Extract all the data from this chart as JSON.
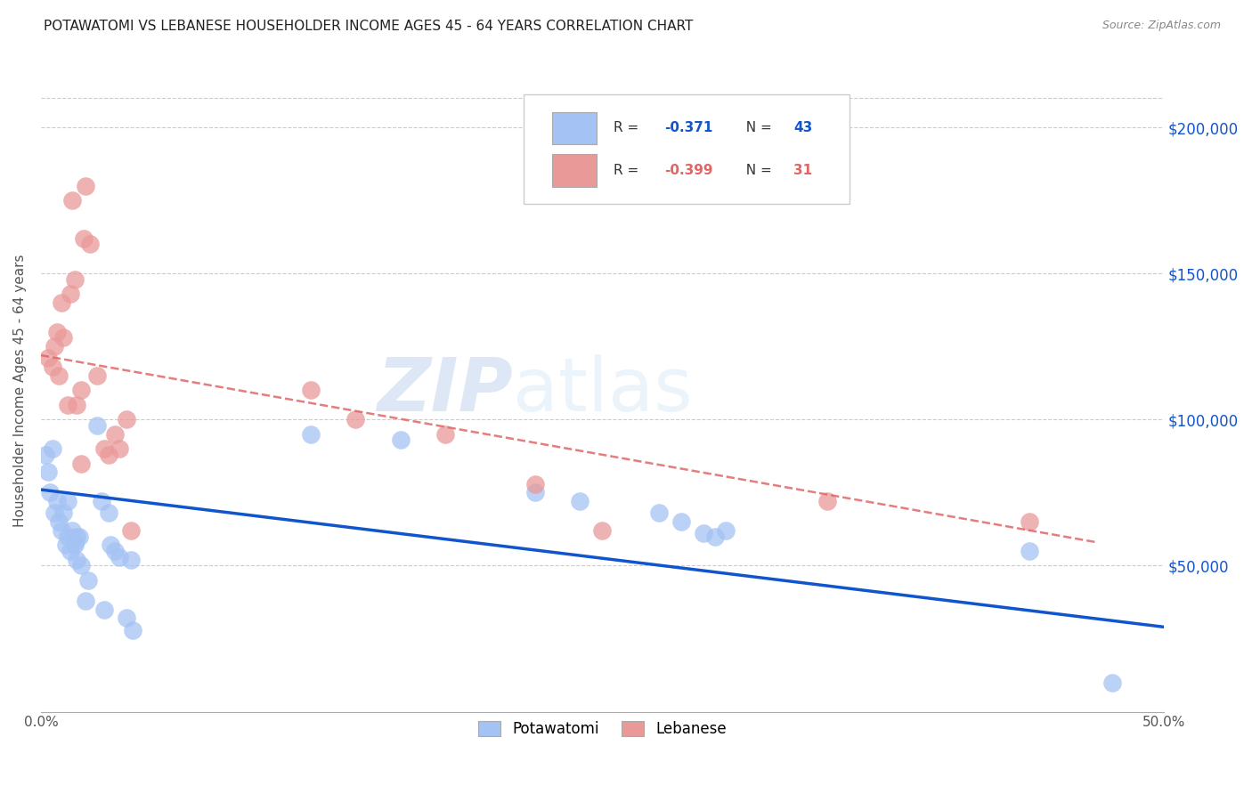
{
  "title": "POTAWATOMI VS LEBANESE HOUSEHOLDER INCOME AGES 45 - 64 YEARS CORRELATION CHART",
  "source": "Source: ZipAtlas.com",
  "ylabel": "Householder Income Ages 45 - 64 years",
  "xlim": [
    0.0,
    0.5
  ],
  "ylim": [
    0,
    220000
  ],
  "yticks": [
    0,
    50000,
    100000,
    150000,
    200000
  ],
  "xticks": [
    0.0,
    0.1,
    0.2,
    0.3,
    0.4,
    0.5
  ],
  "xtick_labels": [
    "0.0%",
    "",
    "",
    "",
    "",
    "50.0%"
  ],
  "right_ytick_labels": [
    "$50,000",
    "$100,000",
    "$150,000",
    "$200,000"
  ],
  "right_ytick_values": [
    50000,
    100000,
    150000,
    200000
  ],
  "blue_color": "#a4c2f4",
  "pink_color": "#ea9999",
  "blue_line_color": "#1155cc",
  "pink_line_color": "#e06666",
  "watermark_zip": "ZIP",
  "watermark_atlas": "atlas",
  "legend_r1": "R =",
  "legend_r1_val": "-0.371",
  "legend_n1_label": "N =",
  "legend_n1_val": "43",
  "legend_r2": "R =",
  "legend_r2_val": "-0.399",
  "legend_n2_label": "N =",
  "legend_n2_val": "31",
  "potawatomi_label": "Potawatomi",
  "lebanese_label": "Lebanese",
  "blue_trend_x": [
    0.0,
    0.5
  ],
  "blue_trend_y": [
    76000,
    29000
  ],
  "pink_trend_x": [
    0.0,
    0.47
  ],
  "pink_trend_y": [
    122000,
    58000
  ],
  "potawatomi_x": [
    0.002,
    0.003,
    0.004,
    0.005,
    0.006,
    0.007,
    0.008,
    0.009,
    0.01,
    0.011,
    0.012,
    0.012,
    0.013,
    0.014,
    0.015,
    0.015,
    0.016,
    0.016,
    0.017,
    0.018,
    0.02,
    0.021,
    0.025,
    0.027,
    0.028,
    0.03,
    0.031,
    0.033,
    0.035,
    0.038,
    0.04,
    0.041,
    0.12,
    0.16,
    0.22,
    0.24,
    0.275,
    0.285,
    0.295,
    0.3,
    0.305,
    0.44,
    0.477
  ],
  "potawatomi_y": [
    88000,
    82000,
    75000,
    90000,
    68000,
    72000,
    65000,
    62000,
    68000,
    57000,
    60000,
    72000,
    55000,
    62000,
    58000,
    57000,
    52000,
    60000,
    60000,
    50000,
    38000,
    45000,
    98000,
    72000,
    35000,
    68000,
    57000,
    55000,
    53000,
    32000,
    52000,
    28000,
    95000,
    93000,
    75000,
    72000,
    68000,
    65000,
    61000,
    60000,
    62000,
    55000,
    10000
  ],
  "lebanese_x": [
    0.003,
    0.005,
    0.006,
    0.007,
    0.008,
    0.009,
    0.01,
    0.012,
    0.013,
    0.014,
    0.015,
    0.016,
    0.018,
    0.018,
    0.019,
    0.02,
    0.022,
    0.025,
    0.028,
    0.03,
    0.033,
    0.035,
    0.038,
    0.04,
    0.12,
    0.14,
    0.18,
    0.22,
    0.25,
    0.35,
    0.44
  ],
  "lebanese_y": [
    121000,
    118000,
    125000,
    130000,
    115000,
    140000,
    128000,
    105000,
    143000,
    175000,
    148000,
    105000,
    85000,
    110000,
    162000,
    180000,
    160000,
    115000,
    90000,
    88000,
    95000,
    90000,
    100000,
    62000,
    110000,
    100000,
    95000,
    78000,
    62000,
    72000,
    65000
  ]
}
